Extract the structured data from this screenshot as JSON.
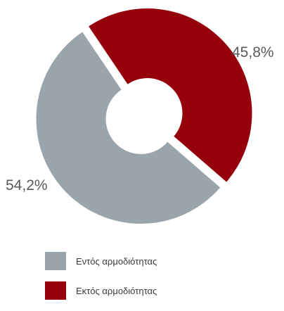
{
  "chart_data": {
    "type": "pie",
    "donut": true,
    "labels": [
      "Εντός αρμοδιότητας",
      "Εκτός αρμοδιότητας"
    ],
    "values": [
      54.2,
      45.8
    ],
    "value_labels": [
      "54,2%",
      "45,8%"
    ],
    "colors": [
      "#9aa4ab",
      "#96000b"
    ],
    "legend_position": "bottom-left",
    "title": "",
    "exploded": true
  }
}
